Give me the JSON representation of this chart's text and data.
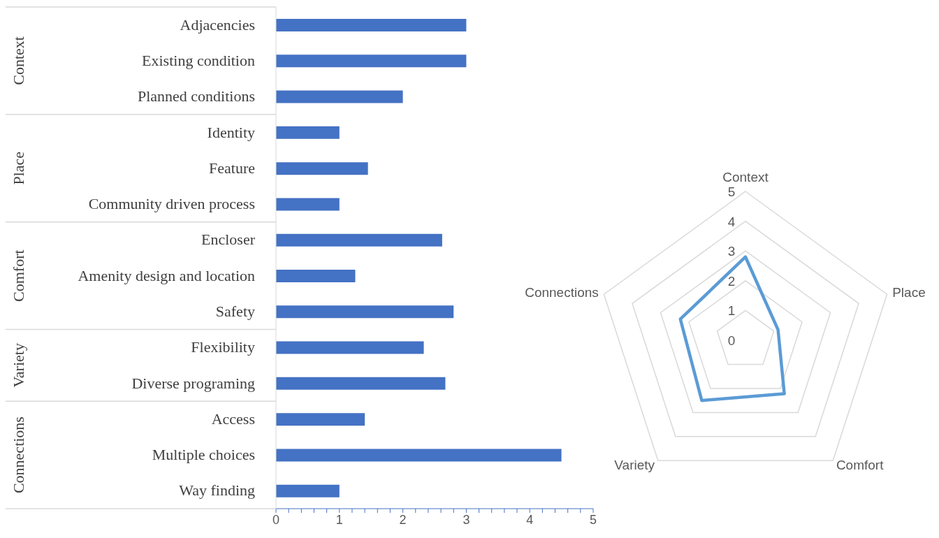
{
  "chart_data": [
    {
      "type": "bar",
      "orientation": "horizontal",
      "categories": [
        "Adjacencies",
        "Existing condition",
        "Planned conditions",
        "Identity",
        "Feature",
        "Community driven process",
        "Encloser",
        "Amenity design and location",
        "Safety",
        "Flexibility",
        "Diverse programing",
        "Access",
        "Multiple choices",
        "Way finding"
      ],
      "values": [
        3,
        3,
        2,
        1,
        1.45,
        1,
        2.62,
        1.25,
        2.8,
        2.33,
        2.67,
        1.4,
        4.5,
        1
      ],
      "color": "#4472c4",
      "xlim": [
        0,
        5
      ],
      "xticks": [
        0,
        {
          "value": 0.2,
          "label": null
        },
        {
          "value": 0.4,
          "label": null
        },
        {
          "value": 0.6,
          "label": null
        },
        {
          "value": 0.8,
          "label": null
        },
        1,
        {
          "value": 1.2,
          "label": null
        },
        {
          "value": 1.4,
          "label": null
        },
        {
          "value": 1.6,
          "label": null
        },
        {
          "value": 1.8,
          "label": null
        },
        2,
        {
          "value": 2.2,
          "label": null
        },
        {
          "value": 2.4,
          "label": null
        },
        {
          "value": 2.6,
          "label": null
        },
        {
          "value": 2.8,
          "label": null
        },
        3,
        {
          "value": 3.2,
          "label": null
        },
        {
          "value": 3.4,
          "label": null
        },
        {
          "value": 3.6,
          "label": null
        },
        {
          "value": 3.8,
          "label": null
        },
        4,
        {
          "value": 4.2,
          "label": null
        },
        {
          "value": 4.4,
          "label": null
        },
        {
          "value": 4.6,
          "label": null
        },
        {
          "value": 4.8,
          "label": null
        },
        5
      ],
      "annotations": [
        "Context",
        "Place",
        "Comfort",
        "Variety",
        "Connections"
      ]
    },
    {
      "type": "radar",
      "categories": [
        "Context",
        "Place",
        "Comfort",
        "Variety",
        "Connections"
      ],
      "series": [
        {
          "color": "#5b9bd5",
          "values": [
            2.8,
            1.15,
            2.22,
            2.5,
            2.3
          ]
        }
      ],
      "ylim": [
        0,
        5
      ],
      "yticks": [
        0,
        1,
        2,
        3,
        4,
        5
      ],
      "grid": true
    }
  ]
}
